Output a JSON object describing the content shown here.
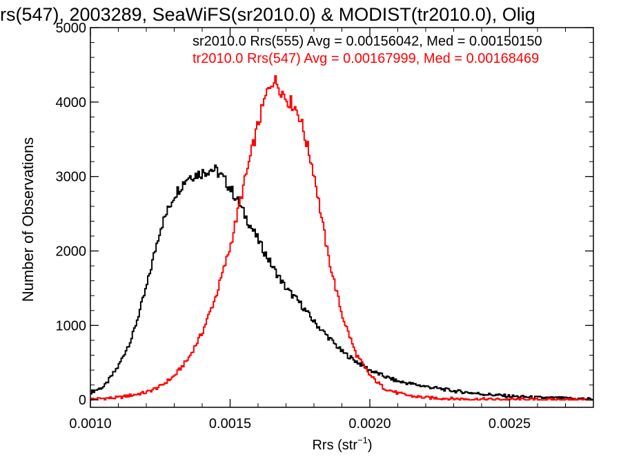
{
  "chart_data": {
    "type": "line",
    "title": "rs(547), 2003289, SeaWiFS(sr2010.0) & MODIST(tr2010.0), Olig",
    "xlabel_base": "Rrs (str",
    "xlabel_exp": "−1",
    "xlabel_close": ")",
    "ylabel": "Number of Observations",
    "xlim": [
      0.001,
      0.0028
    ],
    "ylim": [
      -100,
      5000
    ],
    "xticks": [
      {
        "value": 0.001,
        "label": "0.0010"
      },
      {
        "value": 0.0015,
        "label": "0.0015"
      },
      {
        "value": 0.002,
        "label": "0.0020"
      },
      {
        "value": 0.0025,
        "label": "0.0025"
      }
    ],
    "yticks": [
      {
        "value": 0,
        "label": "0"
      },
      {
        "value": 1000,
        "label": "1000"
      },
      {
        "value": 2000,
        "label": "2000"
      },
      {
        "value": 3000,
        "label": "3000"
      },
      {
        "value": 4000,
        "label": "4000"
      },
      {
        "value": 5000,
        "label": "5000"
      }
    ],
    "series": [
      {
        "name": "sr2010.0 Rrs(555)",
        "legend_text": "sr2010.0 Rrs(555) Avg = 0.00156042, Med = 0.00150150",
        "color": "#000000",
        "x": [
          0.001,
          0.00105,
          0.0011,
          0.00115,
          0.0012,
          0.00125,
          0.0013,
          0.00135,
          0.0014,
          0.00143,
          0.00145,
          0.00147,
          0.0015,
          0.00153,
          0.00155,
          0.0016,
          0.00165,
          0.0017,
          0.00175,
          0.0018,
          0.00185,
          0.0019,
          0.00195,
          0.002,
          0.00205,
          0.0021,
          0.0022,
          0.0023,
          0.0024,
          0.0025,
          0.0026,
          0.0027,
          0.0028
        ],
        "y": [
          100,
          180,
          450,
          850,
          1500,
          2300,
          2750,
          3000,
          3050,
          3100,
          3080,
          3000,
          2850,
          2650,
          2500,
          2150,
          1800,
          1500,
          1300,
          1050,
          850,
          650,
          520,
          400,
          320,
          250,
          180,
          120,
          80,
          50,
          30,
          20,
          10
        ]
      },
      {
        "name": "tr2010.0 Rrs(547)",
        "legend_text": "tr2010.0 Rrs(547) Avg = 0.00167999, Med = 0.00168469",
        "color": "#ff0000",
        "x": [
          0.001,
          0.0011,
          0.0012,
          0.00125,
          0.0013,
          0.00135,
          0.0014,
          0.00145,
          0.0015,
          0.00155,
          0.0016,
          0.00163,
          0.00165,
          0.00167,
          0.0017,
          0.00173,
          0.00175,
          0.0018,
          0.00185,
          0.0019,
          0.00195,
          0.002,
          0.00205,
          0.0021,
          0.00215,
          0.0022,
          0.0023,
          0.0024,
          0.0025,
          0.0026,
          0.0027,
          0.0028
        ],
        "y": [
          10,
          30,
          100,
          180,
          320,
          550,
          900,
          1400,
          2050,
          2900,
          3700,
          4100,
          4300,
          4250,
          4050,
          3950,
          3800,
          3050,
          1950,
          1150,
          620,
          330,
          160,
          90,
          50,
          30,
          15,
          8,
          5,
          3,
          2,
          1
        ]
      }
    ]
  }
}
